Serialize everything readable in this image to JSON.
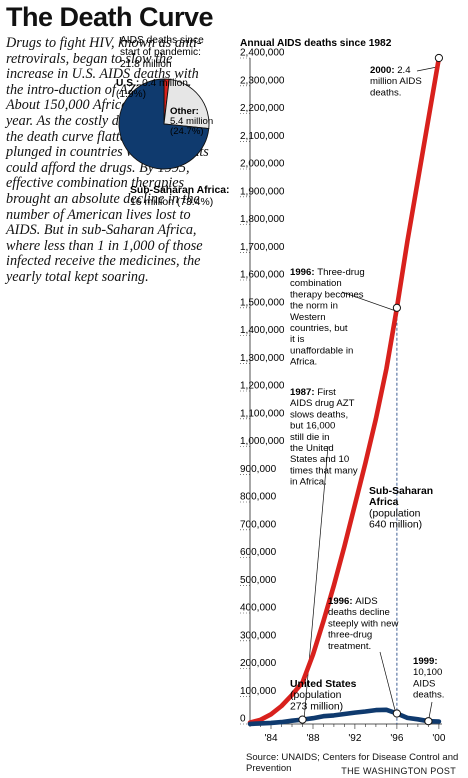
{
  "title": "The Death Curve",
  "intro": "Drugs to fight HIV, known as anti-retrovirals, began to slow the increase in U.S. AIDS deaths with the intro-duction of AZT in 1987. About 150,000 Africans died that year. As the costly drugs improved, the death curve flattened and then plunged in countries where patients could afford the drugs. By 1995, effective combination therapies brought an absolute decline in the number of American lives lost to AIDS. But in sub-Saharan Africa, where less than 1 in 1,000 of those infected receive the medicines, the yearly total kept soaring.",
  "colors": {
    "africa": "#d8211d",
    "us": "#0f3a6e",
    "other": "#e6e6e6"
  },
  "chart_data": [
    {
      "type": "pie",
      "title": "AIDS deaths since start of pandemic: 21.8 million",
      "slices": [
        {
          "name": "U.S.",
          "label": "U.S.:",
          "value_text": "0.4 million",
          "pct_text": "(1.9%)",
          "value": 0.4,
          "pct": 1.9,
          "color": "#d8211d"
        },
        {
          "name": "Other",
          "label": "Other:",
          "value_text": "5.4 million",
          "pct_text": "(24.7%)",
          "value": 5.4,
          "pct": 24.7,
          "color": "#e6e6e6"
        },
        {
          "name": "Sub-Saharan Africa",
          "label": "Sub-Saharan Africa:",
          "value_text": "16 million (73.4%)",
          "value": 16,
          "pct": 73.4,
          "color": "#0f3a6e"
        }
      ]
    },
    {
      "type": "line",
      "title": "Annual AIDS deaths since 1982",
      "ylim": [
        0,
        2400000
      ],
      "xlim": [
        1982,
        2000.3
      ],
      "yticks": [
        0,
        100000,
        200000,
        300000,
        400000,
        500000,
        600000,
        700000,
        800000,
        900000,
        1000000,
        1100000,
        1200000,
        1300000,
        1400000,
        1500000,
        1600000,
        1700000,
        1800000,
        1900000,
        2000000,
        2100000,
        2200000,
        2300000,
        2400000
      ],
      "ytick_labels": [
        "0",
        "100,000",
        "200,000",
        "300,000",
        "400,000",
        "500,000",
        "600,000",
        "700,000",
        "800,000",
        "900,000",
        "1,000,000",
        "1,100,000",
        "1,200,000",
        "1,300,000",
        "1,400,000",
        "1,500,000",
        "1,600,000",
        "1,700,000",
        "1,800,000",
        "1,900,000",
        "2,000,000",
        "2,100,000",
        "2,200,000",
        "2,300,000",
        "2,400,000"
      ],
      "xticks": [
        1984,
        1988,
        1992,
        1996,
        2000
      ],
      "xtick_labels": [
        "'84",
        "'88",
        "'92",
        "'96",
        "'00"
      ],
      "grid": false,
      "series": [
        {
          "name": "Sub-Saharan Africa",
          "color": "#d8211d",
          "x": [
            1982,
            1983,
            1984,
            1985,
            1986,
            1987,
            1988,
            1989,
            1990,
            1991,
            1992,
            1993,
            1994,
            1995,
            1996,
            1997,
            1998,
            1999,
            2000
          ],
          "y": [
            5000,
            15000,
            35000,
            65000,
            105000,
            150000,
            250000,
            370000,
            500000,
            640000,
            790000,
            940000,
            1100000,
            1280000,
            1500000,
            1740000,
            1960000,
            2180000,
            2400000
          ]
        },
        {
          "name": "United States",
          "color": "#0f3a6e",
          "x": [
            1982,
            1983,
            1984,
            1985,
            1986,
            1987,
            1988,
            1989,
            1990,
            1991,
            1992,
            1993,
            1994,
            1995,
            1996,
            1997,
            1998,
            1999,
            2000
          ],
          "y": [
            500,
            2000,
            4000,
            7000,
            12000,
            16000,
            21000,
            28000,
            31000,
            36000,
            41000,
            45000,
            50000,
            51000,
            38000,
            22000,
            17000,
            10100,
            9000
          ]
        }
      ],
      "annotations": [
        {
          "key": "y2000",
          "bold": "2000:",
          "text": "2.4 million AIDS deaths.",
          "x": 2000,
          "y": 2400000,
          "marker_color": "#d8211d"
        },
        {
          "key": "y1996",
          "bold": "1996:",
          "text": "Three-drug combination therapy becomes the norm in Western countries, but it is unaffordable in Africa.",
          "x": 1996,
          "y": 1500000,
          "marker_color": "#d8211d"
        },
        {
          "key": "y1987",
          "bold": "1987:",
          "text": "First AIDS drug AZT slows deaths, but 16,000 still die in the United States and 10 times that many in Africa.",
          "x": 1987,
          "y": 16000,
          "marker_color": "#0f3a6e"
        },
        {
          "key": "africa",
          "bold": "Sub-Saharan Africa",
          "text": "(population 640 million)"
        },
        {
          "key": "us1996",
          "bold": "1996:",
          "text": "AIDS deaths decline steeply with new three-drug treatment.",
          "x": 1996,
          "y": 38000,
          "marker_color": "#0f3a6e"
        },
        {
          "key": "us",
          "bold": "United States",
          "text": "(population 273 million)"
        },
        {
          "key": "y1999",
          "bold": "1999:",
          "text": "10,100 AIDS deaths.",
          "x": 1999,
          "y": 10100,
          "marker_color": "#0f3a6e"
        }
      ]
    }
  ],
  "footer": {
    "source": "Source: UNAIDS; Centers for Disease Control and Prevention",
    "credit": "THE WASHINGTON POST"
  }
}
